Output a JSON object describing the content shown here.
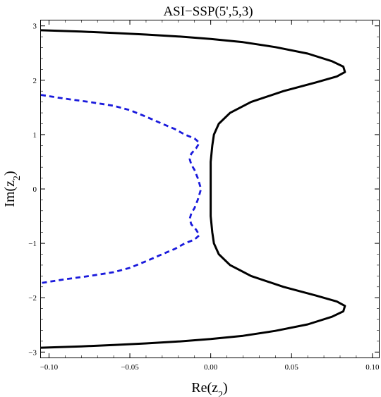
{
  "chart_data": {
    "type": "line",
    "title": "ASI−SSP(5',5,3)",
    "xlabel": "Re(z",
    "xlabel_sub": "2",
    "xlabel_end": ")",
    "ylabel": "Im(z",
    "ylabel_sub": "2",
    "ylabel_end": ")",
    "xlim": [
      -0.105,
      0.104
    ],
    "ylim": [
      -3.1,
      3.1
    ],
    "xticks": [
      {
        "v": -0.1,
        "label": "−0.10"
      },
      {
        "v": -0.05,
        "label": "−0.05"
      },
      {
        "v": 0.0,
        "label": "0.00"
      },
      {
        "v": 0.05,
        "label": "0.05"
      },
      {
        "v": 0.1,
        "label": "0.10"
      }
    ],
    "yticks": [
      {
        "v": 3,
        "label": "3"
      },
      {
        "v": 2,
        "label": "2"
      },
      {
        "v": 1,
        "label": "1"
      },
      {
        "v": 0,
        "label": "0"
      },
      {
        "v": -1,
        "label": "−1"
      },
      {
        "v": -2,
        "label": "−2"
      },
      {
        "v": -3,
        "label": "−3"
      }
    ],
    "grid": false,
    "series": [
      {
        "style": "solid",
        "color": "#000000",
        "points": [
          [
            -0.105,
            2.92
          ],
          [
            -0.08,
            2.895
          ],
          [
            -0.06,
            2.87
          ],
          [
            -0.04,
            2.84
          ],
          [
            -0.02,
            2.805
          ],
          [
            0.0,
            2.76
          ],
          [
            0.02,
            2.7
          ],
          [
            0.04,
            2.61
          ],
          [
            0.06,
            2.49
          ],
          [
            0.075,
            2.35
          ],
          [
            0.082,
            2.25
          ],
          [
            0.083,
            2.15
          ],
          [
            0.078,
            2.07
          ],
          [
            0.065,
            1.96
          ],
          [
            0.045,
            1.8
          ],
          [
            0.025,
            1.6
          ],
          [
            0.012,
            1.4
          ],
          [
            0.005,
            1.2
          ],
          [
            0.002,
            1.0
          ],
          [
            0.001,
            0.8
          ],
          [
            0.0,
            0.5
          ],
          [
            0.0,
            0.0
          ],
          [
            0.0,
            -0.5
          ],
          [
            0.001,
            -0.8
          ],
          [
            0.002,
            -1.0
          ],
          [
            0.005,
            -1.2
          ],
          [
            0.012,
            -1.4
          ],
          [
            0.025,
            -1.6
          ],
          [
            0.045,
            -1.8
          ],
          [
            0.065,
            -1.96
          ],
          [
            0.078,
            -2.07
          ],
          [
            0.083,
            -2.15
          ],
          [
            0.082,
            -2.25
          ],
          [
            0.075,
            -2.35
          ],
          [
            0.06,
            -2.49
          ],
          [
            0.04,
            -2.61
          ],
          [
            0.02,
            -2.7
          ],
          [
            0.0,
            -2.76
          ],
          [
            -0.02,
            -2.805
          ],
          [
            -0.04,
            -2.84
          ],
          [
            -0.06,
            -2.87
          ],
          [
            -0.08,
            -2.895
          ],
          [
            -0.105,
            -2.92
          ]
        ]
      },
      {
        "style": "dashed",
        "color": "#1a1adc",
        "points": [
          [
            -0.105,
            1.73
          ],
          [
            -0.09,
            1.66
          ],
          [
            -0.075,
            1.6
          ],
          [
            -0.06,
            1.53
          ],
          [
            -0.05,
            1.45
          ],
          [
            -0.04,
            1.33
          ],
          [
            -0.03,
            1.2
          ],
          [
            -0.022,
            1.1
          ],
          [
            -0.016,
            1.0
          ],
          [
            -0.01,
            0.93
          ],
          [
            -0.007,
            0.85
          ],
          [
            -0.009,
            0.75
          ],
          [
            -0.012,
            0.65
          ],
          [
            -0.013,
            0.55
          ],
          [
            -0.012,
            0.45
          ],
          [
            -0.01,
            0.35
          ],
          [
            -0.008,
            0.2
          ],
          [
            -0.006,
            0.0
          ],
          [
            -0.008,
            -0.2
          ],
          [
            -0.01,
            -0.35
          ],
          [
            -0.012,
            -0.45
          ],
          [
            -0.013,
            -0.55
          ],
          [
            -0.012,
            -0.65
          ],
          [
            -0.009,
            -0.75
          ],
          [
            -0.007,
            -0.85
          ],
          [
            -0.01,
            -0.93
          ],
          [
            -0.016,
            -1.0
          ],
          [
            -0.022,
            -1.1
          ],
          [
            -0.03,
            -1.2
          ],
          [
            -0.04,
            -1.33
          ],
          [
            -0.05,
            -1.45
          ],
          [
            -0.06,
            -1.53
          ],
          [
            -0.075,
            -1.6
          ],
          [
            -0.09,
            -1.66
          ],
          [
            -0.105,
            -1.73
          ]
        ]
      }
    ]
  }
}
